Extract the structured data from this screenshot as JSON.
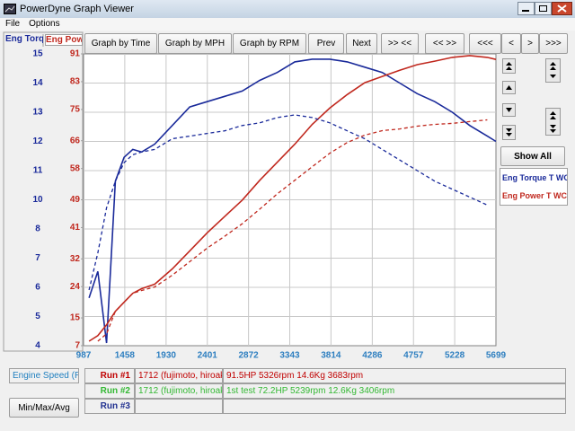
{
  "window": {
    "title": "PowerDyne Graph Viewer",
    "menu": [
      "File",
      "Options"
    ]
  },
  "toolbar": [
    "Graph by Time",
    "Graph by MPH",
    "Graph by RPM",
    "Prev",
    "Next",
    ">> <<",
    "<< >>",
    "<<<",
    "<",
    ">",
    ">>>"
  ],
  "side_panel": {
    "show_all": "Show All"
  },
  "min_max_button": "Min/Max/Avg",
  "runs": [
    {
      "label": "Run #1",
      "color": "#c00000",
      "vehicle": "1712 (fujimoto, hiroaki)",
      "summary": "91.5HP 5326rpm 14.6Kg 3683rpm"
    },
    {
      "label": "Run #2",
      "color": "#33b833",
      "vehicle": "1712 (fujimoto, hiroaki)",
      "summary": "1st test  72.2HP 5239rpm  12.6Kg 3406rpm"
    },
    {
      "label": "Run #3",
      "color": "#1f2f8f"
    }
  ],
  "chart_data": {
    "type": "line",
    "x_label": "Engine Speed (RP",
    "y_label": "Eng Torqu",
    "y2_label": "Eng Powe",
    "x": [
      1050,
      1150,
      1250,
      1350,
      1450,
      1550,
      1650,
      1800,
      2000,
      2200,
      2400,
      2600,
      2800,
      3000,
      3200,
      3400,
      3600,
      3800,
      4000,
      4200,
      4400,
      4600,
      4800,
      5000,
      5200,
      5400,
      5600,
      5699
    ],
    "xlim": [
      987,
      5699
    ],
    "xticks": [
      987,
      1458,
      1930,
      2401,
      2872,
      3343,
      3814,
      4286,
      4757,
      5228,
      5699
    ],
    "ylim": [
      4,
      15
    ],
    "yticks": [
      4,
      {
        "value": 5.1,
        "label": "5"
      },
      {
        "value": 6.2,
        "label": "6"
      },
      {
        "value": 7.3,
        "label": "7"
      },
      {
        "value": 8.4,
        "label": "8"
      },
      {
        "value": 9.5,
        "label": "10"
      },
      {
        "value": 10.6,
        "label": "11"
      },
      {
        "value": 11.7,
        "label": "12"
      },
      {
        "value": 12.8,
        "label": "13"
      },
      {
        "value": 13.9,
        "label": "14"
      },
      15
    ],
    "y2lim": [
      7,
      91
    ],
    "y2ticks": [
      7,
      15,
      24,
      32,
      41,
      49,
      58,
      66,
      75,
      83,
      91
    ],
    "grid": true,
    "legend": "right",
    "series": [
      {
        "name": "Eng Torque T WC",
        "color": "#1a2a9a",
        "values": [
          5.8,
          6.8,
          4.1,
          10.2,
          11.1,
          11.4,
          11.3,
          11.6,
          12.3,
          13.0,
          13.2,
          13.4,
          13.6,
          14.0,
          14.3,
          14.7,
          14.8,
          14.8,
          14.7,
          14.5,
          14.3,
          13.9,
          13.5,
          13.2,
          12.8,
          12.3,
          11.9,
          11.7
        ]
      },
      {
        "name": "Eng Power T WC (",
        "color": "#c0281e",
        "axis": "y2",
        "values": [
          8.3,
          9.9,
          13.0,
          16.9,
          19.5,
          22.1,
          23.4,
          24.7,
          29.1,
          34.3,
          39.5,
          44.2,
          48.9,
          54.6,
          59.8,
          65.0,
          70.7,
          75.4,
          79.3,
          82.7,
          84.5,
          86.3,
          87.9,
          88.9,
          90.0,
          90.5,
          90.0,
          89.4
        ]
      },
      {
        "color": "#1a2a9a",
        "dash": true,
        "values": [
          6.1,
          7.5,
          9.2,
          10.2,
          10.9,
          11.2,
          11.3,
          11.4,
          11.8,
          11.9,
          12.0,
          12.1,
          12.3,
          12.4,
          12.6,
          12.7,
          12.6,
          12.4,
          12.1,
          11.8,
          11.4,
          11.0,
          10.6,
          10.2,
          9.9,
          9.6,
          9.3,
          null
        ]
      },
      {
        "color": "#c0281e",
        "dash": true,
        "axis": "y2",
        "values": [
          null,
          8.3,
          10.4,
          16.9,
          19.5,
          22.1,
          22.9,
          23.9,
          27.3,
          31.2,
          35.1,
          38.5,
          42.1,
          46.3,
          50.7,
          54.6,
          58.5,
          62.4,
          65.5,
          67.6,
          68.9,
          69.4,
          70.2,
          70.7,
          71.0,
          71.5,
          72.0,
          null
        ]
      }
    ]
  }
}
